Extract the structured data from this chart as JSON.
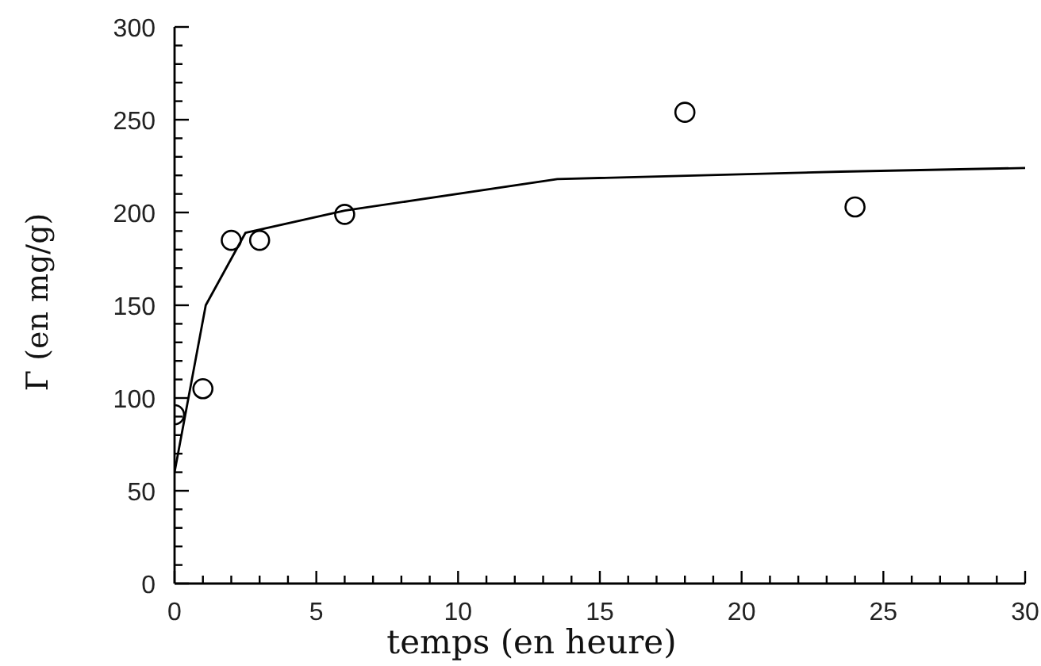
{
  "chart_data": {
    "type": "scatter",
    "xlabel": "temps (en heure)",
    "ylabel": "Γ (en mg/g)",
    "xlim": [
      0,
      30
    ],
    "ylim": [
      0,
      300
    ],
    "xticks": [
      0,
      {
        "value": 1,
        "label": null
      },
      {
        "value": 2,
        "label": null
      },
      {
        "value": 3,
        "label": null
      },
      {
        "value": 4,
        "label": null
      },
      5,
      {
        "value": 6,
        "label": null
      },
      {
        "value": 7,
        "label": null
      },
      {
        "value": 8,
        "label": null
      },
      {
        "value": 9,
        "label": null
      },
      10,
      {
        "value": 11,
        "label": null
      },
      {
        "value": 12,
        "label": null
      },
      {
        "value": 13,
        "label": null
      },
      {
        "value": 14,
        "label": null
      },
      15,
      {
        "value": 16,
        "label": null
      },
      {
        "value": 17,
        "label": null
      },
      {
        "value": 18,
        "label": null
      },
      {
        "value": 19,
        "label": null
      },
      20,
      {
        "value": 21,
        "label": null
      },
      {
        "value": 22,
        "label": null
      },
      {
        "value": 23,
        "label": null
      },
      {
        "value": 24,
        "label": null
      },
      25,
      {
        "value": 26,
        "label": null
      },
      {
        "value": 27,
        "label": null
      },
      {
        "value": 28,
        "label": null
      },
      {
        "value": 29,
        "label": null
      },
      30
    ],
    "yticks": [
      0,
      {
        "value": 10,
        "label": null
      },
      {
        "value": 20,
        "label": null
      },
      {
        "value": 30,
        "label": null
      },
      {
        "value": 40,
        "label": null
      },
      50,
      {
        "value": 60,
        "label": null
      },
      {
        "value": 70,
        "label": null
      },
      {
        "value": 80,
        "label": null
      },
      {
        "value": 90,
        "label": null
      },
      100,
      {
        "value": 110,
        "label": null
      },
      {
        "value": 120,
        "label": null
      },
      {
        "value": 130,
        "label": null
      },
      {
        "value": 140,
        "label": null
      },
      150,
      {
        "value": 160,
        "label": null
      },
      {
        "value": 170,
        "label": null
      },
      {
        "value": 180,
        "label": null
      },
      {
        "value": 190,
        "label": null
      },
      200,
      {
        "value": 210,
        "label": null
      },
      {
        "value": 220,
        "label": null
      },
      {
        "value": 230,
        "label": null
      },
      {
        "value": 240,
        "label": null
      },
      250,
      {
        "value": 260,
        "label": null
      },
      {
        "value": 270,
        "label": null
      },
      {
        "value": 280,
        "label": null
      },
      {
        "value": 290,
        "label": null
      },
      300
    ],
    "series": [
      {
        "color": "#000000",
        "marker": "circle",
        "x": [
          0,
          1,
          2,
          3,
          6,
          18,
          24
        ],
        "values": [
          91,
          105,
          185,
          185,
          199,
          254,
          203
        ]
      },
      {
        "type": "line",
        "color": "#000000",
        "marker": "none",
        "line_style": "solid",
        "x": [
          0,
          1.1,
          2.5,
          6,
          13.5,
          23.5,
          30
        ],
        "values": [
          60,
          150,
          189,
          201,
          218,
          222,
          224
        ]
      }
    ]
  }
}
